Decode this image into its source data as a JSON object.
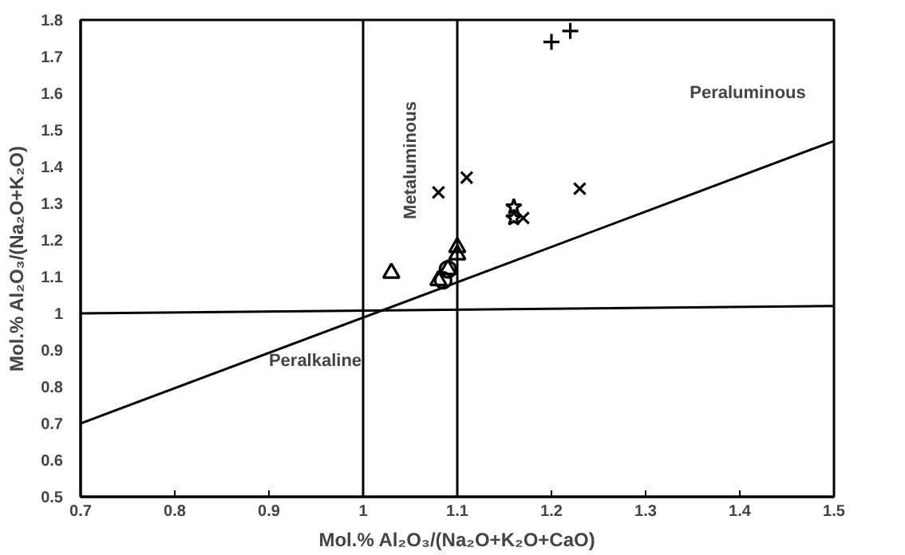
{
  "chart_data": {
    "type": "scatter",
    "xlabel": "Mol.% Al₂O₃/(Na₂O+K₂O+CaO)",
    "ylabel": "Mol.% Al₂O₃/(Na₂O+K₂O)",
    "xlim": [
      0.7,
      1.5
    ],
    "ylim": [
      0.5,
      1.8
    ],
    "xticks": [
      0.7,
      0.8,
      0.9,
      1,
      1.1,
      1.2,
      1.3,
      1.4,
      1.5
    ],
    "yticks": [
      0.5,
      0.6,
      0.7,
      0.8,
      0.9,
      1,
      1.1,
      1.2,
      1.3,
      1.4,
      1.5,
      1.6,
      1.7,
      1.8
    ],
    "grid": false,
    "series": [
      {
        "marker": "cross",
        "color": "#000000",
        "x": [
          1.2,
          1.22
        ],
        "values": [
          1.74,
          1.77
        ]
      },
      {
        "marker": "x",
        "color": "#000000",
        "x": [
          1.08,
          1.11,
          1.17,
          1.23
        ],
        "values": [
          1.33,
          1.37,
          1.26,
          1.34
        ]
      },
      {
        "marker": "star",
        "color": "#000000",
        "x": [
          1.16,
          1.16
        ],
        "values": [
          1.29,
          1.26
        ]
      },
      {
        "marker": "triangle",
        "color": "#000000",
        "x": [
          1.03,
          1.08,
          1.1,
          1.1,
          1.09
        ],
        "values": [
          1.11,
          1.09,
          1.16,
          1.18,
          1.12
        ]
      },
      {
        "marker": "circle",
        "color": "#000000",
        "x": [
          1.085,
          1.09
        ],
        "values": [
          1.09,
          1.12
        ]
      },
      {
        "type": "line",
        "color": "#000000",
        "x": [
          0.7,
          1.5
        ],
        "values": [
          0.7,
          1.47
        ]
      },
      {
        "type": "line",
        "color": "#000000",
        "x": [
          0.7,
          1.5
        ],
        "values": [
          1.0,
          1.02
        ]
      }
    ],
    "ref_lines": [
      {
        "axis": "x",
        "value": 1,
        "color": "#000000"
      },
      {
        "axis": "x",
        "value": 1.1,
        "color": "#000000"
      }
    ],
    "annotations": [
      "Peraluminous",
      "Metaluminous",
      "Peralkaline"
    ]
  }
}
